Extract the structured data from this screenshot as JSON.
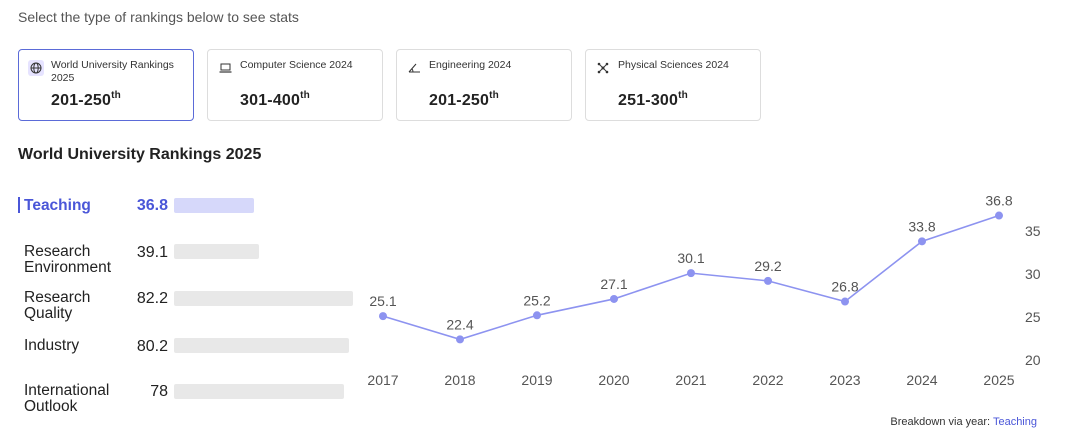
{
  "intro_text": "Select the type of rankings below to see stats",
  "cards": [
    {
      "label": "World University Rankings 2025",
      "value": "201-250",
      "suffix": "th",
      "icon": "globe-icon",
      "active": true
    },
    {
      "label": "Computer Science 2024",
      "value": "301-400",
      "suffix": "th",
      "icon": "laptop-icon",
      "active": false
    },
    {
      "label": "Engineering 2024",
      "value": "201-250",
      "suffix": "th",
      "icon": "protractor-icon",
      "active": false
    },
    {
      "label": "Physical Sciences 2024",
      "value": "251-300",
      "suffix": "th",
      "icon": "atom-icon",
      "active": false
    }
  ],
  "section_title": "World University Rankings 2025",
  "metrics": [
    {
      "label": "Teaching",
      "value": "36.8",
      "score": 36.8,
      "active": true
    },
    {
      "label": "Research Environment",
      "value": "39.1",
      "score": 39.1,
      "active": false
    },
    {
      "label": "Research Quality",
      "value": "82.2",
      "score": 82.2,
      "active": false
    },
    {
      "label": "Industry",
      "value": "80.2",
      "score": 80.2,
      "active": false
    },
    {
      "label": "International Outlook",
      "value": "78",
      "score": 78,
      "active": false
    }
  ],
  "chart_data": {
    "type": "line",
    "title": "",
    "xlabel": "",
    "ylabel": "",
    "x": [
      "2017",
      "2018",
      "2019",
      "2020",
      "2021",
      "2022",
      "2023",
      "2024",
      "2025"
    ],
    "series": [
      {
        "values": [
          25.1,
          22.4,
          25.2,
          27.1,
          30.1,
          29.2,
          26.8,
          33.8,
          36.8
        ]
      }
    ],
    "y_ticks": [
      20,
      25,
      30,
      35
    ],
    "ylim": [
      20,
      37
    ],
    "grid": false,
    "y_axis_side": "right",
    "line_color": "#8d93f0",
    "data_labels": true
  },
  "footer": {
    "prefix": "Breakdown via year: ",
    "link": "Teaching"
  },
  "colors": {
    "accent": "#4a56d8",
    "bar_active": "#d6d8fa",
    "bar_inactive": "#e8e8e8",
    "line": "#8d93f0"
  }
}
